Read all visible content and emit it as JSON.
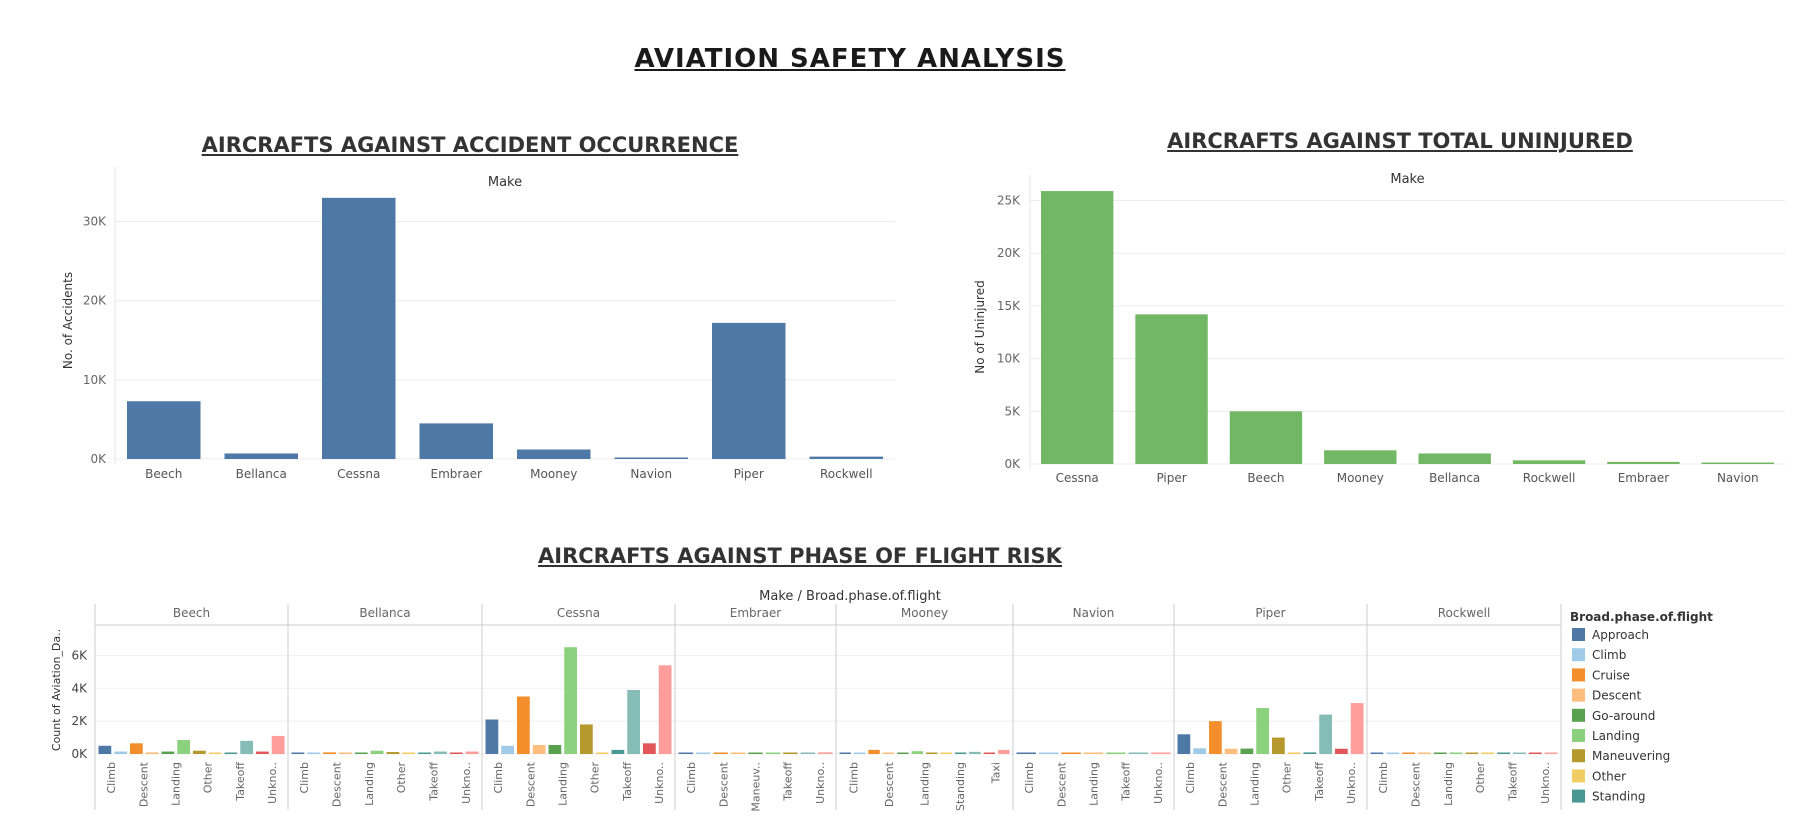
{
  "page": {
    "title": "AVIATION SAFETY ANALYSIS"
  },
  "chart_data": [
    {
      "type": "bar",
      "title": "AIRCRAFTS AGAINST ACCIDENT OCCURRENCE",
      "header_label": "Make",
      "ylabel": "No. of Accidents",
      "categories": [
        "Beech",
        "Bellanca",
        "Cessna",
        "Embraer",
        "Mooney",
        "Navion",
        "Piper",
        "Rockwell"
      ],
      "values": [
        7300,
        700,
        33000,
        4500,
        1200,
        40,
        17200,
        300
      ],
      "ylim": [
        0,
        35000
      ],
      "yticks": [
        "0K",
        "10K",
        "20K",
        "30K"
      ],
      "color": "#4e79a7",
      "grid": true
    },
    {
      "type": "bar",
      "title": "AIRCRAFTS AGAINST TOTAL UNINJURED",
      "header_label": "Make",
      "ylabel": "No of Uninjured",
      "categories": [
        "Cessna",
        "Piper",
        "Beech",
        "Mooney",
        "Bellanca",
        "Rockwell",
        "Embraer",
        "Navion"
      ],
      "values": [
        25900,
        14200,
        5000,
        1300,
        1000,
        350,
        200,
        120
      ],
      "ylim": [
        0,
        26000
      ],
      "yticks": [
        "0K",
        "5K",
        "10K",
        "15K",
        "20K",
        "25K"
      ],
      "color": "#72b864",
      "grid": true
    },
    {
      "type": "bar",
      "title": "AIRCRAFTS AGAINST PHASE OF FLIGHT RISK",
      "header_label": "Make / Broad.phase.of.flight",
      "ylabel": "Count of Aviation_Da..",
      "ylim": [
        0,
        7000
      ],
      "yticks": [
        "0K",
        "2K",
        "4K",
        "6K"
      ],
      "grid": true,
      "legend_title": "Broad.phase.of.flight",
      "legend": [
        {
          "name": "Approach",
          "color": "#4e79a7"
        },
        {
          "name": "Climb",
          "color": "#a0cbe8"
        },
        {
          "name": "Cruise",
          "color": "#f28e2b"
        },
        {
          "name": "Descent",
          "color": "#ffbe7d"
        },
        {
          "name": "Go-around",
          "color": "#59a14f"
        },
        {
          "name": "Landing",
          "color": "#8cd17d"
        },
        {
          "name": "Maneuvering",
          "color": "#b6992d"
        },
        {
          "name": "Other",
          "color": "#f1ce63"
        },
        {
          "name": "Standing",
          "color": "#499894"
        }
      ],
      "extra_colors": {
        "Takeoff": "#86bcb6",
        "Taxi": "#e15759",
        "Unknown": "#ff9d9a"
      },
      "panels": [
        {
          "make": "Beech",
          "labels": [
            "Climb",
            "Descent",
            "Landing",
            "Other",
            "Takeoff",
            "Unkno.."
          ],
          "bars": [
            [
              "Approach",
              500
            ],
            [
              "Climb",
              150
            ],
            [
              "Cruise",
              650
            ],
            [
              "Descent",
              100
            ],
            [
              "Go-around",
              150
            ],
            [
              "Landing",
              850
            ],
            [
              "Maneuvering",
              200
            ],
            [
              "Other",
              20
            ],
            [
              "Standing",
              60
            ],
            [
              "Takeoff",
              800
            ],
            [
              "Taxi",
              150
            ],
            [
              "Unknown",
              1100
            ]
          ]
        },
        {
          "make": "Bellanca",
          "labels": [
            "Climb",
            "Descent",
            "Landing",
            "Other",
            "Takeoff",
            "Unkno.."
          ],
          "bars": [
            [
              "Approach",
              60
            ],
            [
              "Climb",
              30
            ],
            [
              "Cruise",
              100
            ],
            [
              "Descent",
              30
            ],
            [
              "Go-around",
              20
            ],
            [
              "Landing",
              200
            ],
            [
              "Maneuvering",
              120
            ],
            [
              "Other",
              10
            ],
            [
              "Standing",
              10
            ],
            [
              "Takeoff",
              150
            ],
            [
              "Taxi",
              20
            ],
            [
              "Unknown",
              150
            ]
          ]
        },
        {
          "make": "Cessna",
          "labels": [
            "Climb",
            "Descent",
            "Landing",
            "Other",
            "Takeoff",
            "Unkno.."
          ],
          "bars": [
            [
              "Approach",
              2100
            ],
            [
              "Climb",
              500
            ],
            [
              "Cruise",
              3500
            ],
            [
              "Descent",
              550
            ],
            [
              "Go-around",
              550
            ],
            [
              "Landing",
              6500
            ],
            [
              "Maneuvering",
              1800
            ],
            [
              "Other",
              60
            ],
            [
              "Standing",
              250
            ],
            [
              "Takeoff",
              3900
            ],
            [
              "Taxi",
              650
            ],
            [
              "Unknown",
              5400
            ]
          ]
        },
        {
          "make": "Embraer",
          "labels": [
            "Climb",
            "Descent",
            "Maneuv..",
            "Takeoff",
            "Unkno.."
          ],
          "bars": [
            [
              "Approach",
              10
            ],
            [
              "Climb",
              10
            ],
            [
              "Cruise",
              10
            ],
            [
              "Descent",
              5
            ],
            [
              "Go-around",
              5
            ],
            [
              "Landing",
              10
            ],
            [
              "Maneuvering",
              5
            ],
            [
              "Takeoff",
              10
            ],
            [
              "Unknown",
              100
            ]
          ]
        },
        {
          "make": "Mooney",
          "labels": [
            "Climb",
            "Descent",
            "Landing",
            "Standing",
            "Taxi"
          ],
          "bars": [
            [
              "Approach",
              80
            ],
            [
              "Climb",
              50
            ],
            [
              "Cruise",
              250
            ],
            [
              "Descent",
              70
            ],
            [
              "Go-around",
              40
            ],
            [
              "Landing",
              170
            ],
            [
              "Maneuvering",
              40
            ],
            [
              "Other",
              10
            ],
            [
              "Standing",
              10
            ],
            [
              "Takeoff",
              130
            ],
            [
              "Taxi",
              15
            ],
            [
              "Unknown",
              250
            ]
          ]
        },
        {
          "make": "Navion",
          "labels": [
            "Climb",
            "Descent",
            "Landing",
            "Takeoff",
            "Unkno.."
          ],
          "bars": [
            [
              "Approach",
              5
            ],
            [
              "Climb",
              5
            ],
            [
              "Cruise",
              5
            ],
            [
              "Descent",
              5
            ],
            [
              "Landing",
              5
            ],
            [
              "Takeoff",
              5
            ],
            [
              "Unknown",
              5
            ]
          ]
        },
        {
          "make": "Piper",
          "labels": [
            "Climb",
            "Descent",
            "Landing",
            "Other",
            "Takeoff",
            "Unkno.."
          ],
          "bars": [
            [
              "Approach",
              1200
            ],
            [
              "Climb",
              350
            ],
            [
              "Cruise",
              2000
            ],
            [
              "Descent",
              320
            ],
            [
              "Go-around",
              330
            ],
            [
              "Landing",
              2800
            ],
            [
              "Maneuvering",
              1000
            ],
            [
              "Other",
              30
            ],
            [
              "Standing",
              100
            ],
            [
              "Takeoff",
              2400
            ],
            [
              "Taxi",
              320
            ],
            [
              "Unknown",
              3100
            ]
          ]
        },
        {
          "make": "Rockwell",
          "labels": [
            "Climb",
            "Descent",
            "Landing",
            "Other",
            "Takeoff",
            "Unkno.."
          ],
          "bars": [
            [
              "Approach",
              60
            ],
            [
              "Climb",
              20
            ],
            [
              "Cruise",
              70
            ],
            [
              "Descent",
              30
            ],
            [
              "Go-around",
              10
            ],
            [
              "Landing",
              60
            ],
            [
              "Maneuvering",
              90
            ],
            [
              "Other",
              10
            ],
            [
              "Standing",
              10
            ],
            [
              "Takeoff",
              60
            ],
            [
              "Taxi",
              10
            ],
            [
              "Unknown",
              70
            ]
          ]
        }
      ]
    }
  ]
}
